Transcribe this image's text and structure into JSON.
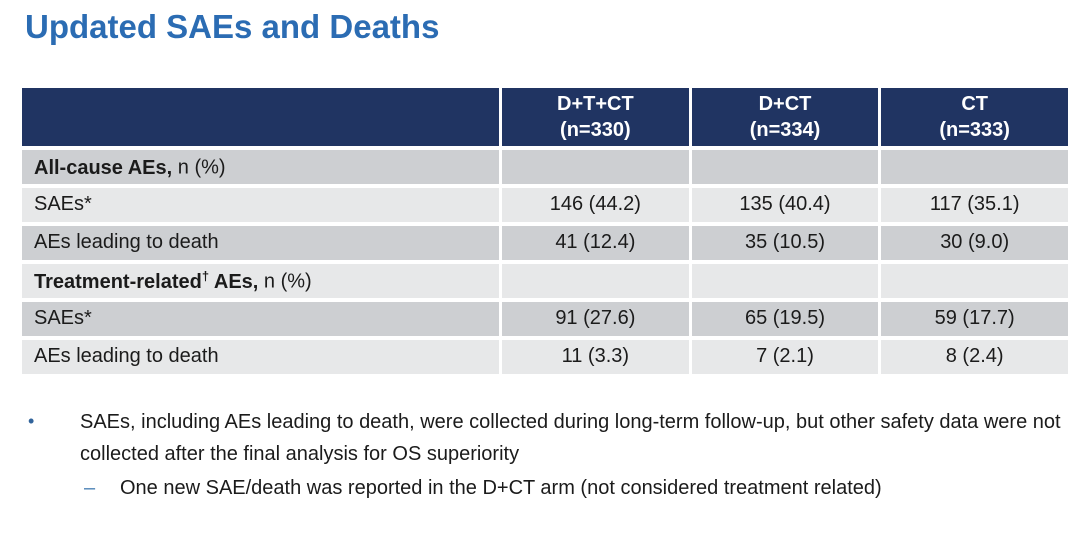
{
  "slide": {
    "title": "Updated SAEs and Deaths"
  },
  "table": {
    "header": {
      "columns": [
        {
          "line1": "D+T+CT",
          "line2": "(n=330)"
        },
        {
          "line1": "D+CT",
          "line2": "(n=334)"
        },
        {
          "line1": "CT",
          "line2": "(n=333)"
        }
      ]
    },
    "rows": [
      {
        "kind": "section",
        "bold1": "All-cause AEs,",
        "sup": "",
        "bold2": "",
        "normal": " n (%)",
        "values": [
          "",
          "",
          ""
        ]
      },
      {
        "kind": "data",
        "label": "SAEs*",
        "values": [
          "146 (44.2)",
          "135 (40.4)",
          "117 (35.1)"
        ]
      },
      {
        "kind": "data",
        "label": "AEs leading to death",
        "values": [
          "41 (12.4)",
          "35 (10.5)",
          "30 (9.0)"
        ]
      },
      {
        "kind": "section",
        "bold1": "Treatment-related",
        "sup": "†",
        "bold2": " AEs,",
        "normal": " n (%)",
        "values": [
          "",
          "",
          ""
        ]
      },
      {
        "kind": "data",
        "label": "SAEs*",
        "values": [
          "91 (27.6)",
          "65 (19.5)",
          "59 (17.7)"
        ]
      },
      {
        "kind": "data",
        "label": "AEs leading to death",
        "values": [
          "11 (3.3)",
          "7 (2.1)",
          "8 (2.4)"
        ]
      }
    ]
  },
  "notes": {
    "bullet_glyph": "•",
    "dash_glyph": "–",
    "bullet1": "SAEs, including AEs leading to death, were collected during long-term follow-up, but other safety data were not collected after the final analysis for OS superiority",
    "sub_bullet1": "One new SAE/death was reported in the D+CT arm (not considered treatment related)"
  },
  "colors": {
    "title_blue": "#2b6cb3",
    "header_navy": "#203462",
    "header_text": "#ffffff",
    "row_dark": "#cdcfd2",
    "row_light": "#e7e8e9",
    "bullet_blue": "#31649b",
    "dash_blue": "#4a80b5",
    "body_text": "#1b1b1b"
  }
}
